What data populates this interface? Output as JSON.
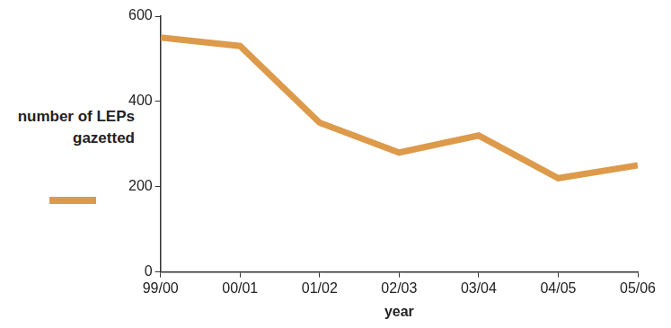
{
  "chart_data": {
    "type": "line",
    "ylabel": "number of LEPs gazetted",
    "xlabel": "year",
    "categories": [
      "99/00",
      "00/01",
      "01/02",
      "02/03",
      "03/04",
      "04/05",
      "05/06"
    ],
    "values": [
      550,
      530,
      350,
      280,
      320,
      220,
      250
    ],
    "color": "#dd9a4b",
    "ylim": [
      0,
      600
    ],
    "yticks": [
      0,
      200,
      400,
      600
    ],
    "grid": false
  }
}
